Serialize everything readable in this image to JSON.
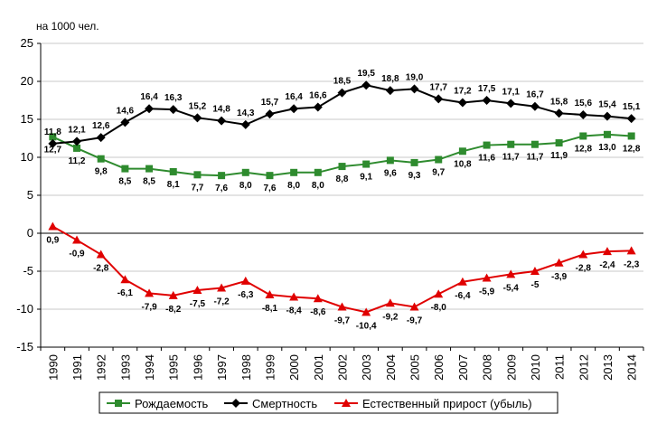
{
  "chart_data": {
    "type": "line",
    "unit_label": "на 1000 чел.",
    "categories": [
      "1990",
      "1991",
      "1992",
      "1993",
      "1994",
      "1995",
      "1996",
      "1997",
      "1998",
      "1999",
      "2000",
      "2001",
      "2002",
      "2003",
      "2004",
      "2005",
      "2006",
      "2007",
      "2008",
      "2009",
      "2010",
      "2011",
      "2012",
      "2013",
      "2014"
    ],
    "ylim": [
      -15,
      25
    ],
    "yticks": [
      -15,
      -10,
      -5,
      0,
      5,
      10,
      15,
      20,
      25
    ],
    "grid": "horizontal",
    "legend_position": "bottom",
    "series": [
      {
        "name": "Рождаемость",
        "color": "#2e8b2e",
        "marker": "square",
        "values": [
          12.7,
          11.2,
          9.8,
          8.5,
          8.5,
          8.1,
          7.7,
          7.6,
          8.0,
          7.6,
          8.0,
          8.0,
          8.8,
          9.1,
          9.6,
          9.3,
          9.7,
          10.8,
          11.6,
          11.7,
          11.7,
          11.9,
          12.8,
          13.0,
          12.8
        ],
        "labels": [
          "12,7",
          "11,2",
          "9,8",
          "8,5",
          "8,5",
          "8,1",
          "7,7",
          "7,6",
          "8,0",
          "7,6",
          "8,0",
          "8,0",
          "8,8",
          "9,1",
          "9,6",
          "9,3",
          "9,7",
          "10,8",
          "11,6",
          "11,7",
          "11,7",
          "11,9",
          "12,8",
          "13,0",
          "12,8"
        ]
      },
      {
        "name": "Смертность",
        "color": "#000000",
        "marker": "diamond",
        "values": [
          11.8,
          12.1,
          12.6,
          14.6,
          16.4,
          16.3,
          15.2,
          14.8,
          14.3,
          15.7,
          16.4,
          16.6,
          18.5,
          19.5,
          18.8,
          19.0,
          17.7,
          17.2,
          17.5,
          17.1,
          16.7,
          15.8,
          15.6,
          15.4,
          15.1
        ],
        "labels": [
          "11,8",
          "12,1",
          "12,6",
          "14,6",
          "16,4",
          "16,3",
          "15,2",
          "14,8",
          "14,3",
          "15,7",
          "16,4",
          "16,6",
          "18,5",
          "19,5",
          "18,8",
          "19,0",
          "17,7",
          "17,2",
          "17,5",
          "17,1",
          "16,7",
          "15,8",
          "15,6",
          "15,4",
          "15,1"
        ]
      },
      {
        "name": "Естественный прирост (убыль)",
        "color": "#e00000",
        "marker": "triangle",
        "values": [
          0.9,
          -0.9,
          -2.8,
          -6.1,
          -7.9,
          -8.2,
          -7.5,
          -7.2,
          -6.3,
          -8.1,
          -8.4,
          -8.6,
          -9.7,
          -10.4,
          -9.2,
          -9.7,
          -8.0,
          -6.4,
          -5.9,
          -5.4,
          -5.0,
          -3.9,
          -2.8,
          -2.4,
          -2.3
        ],
        "labels": [
          "0,9",
          "-0,9",
          "-2,8",
          "-6,1",
          "-7,9",
          "-8,2",
          "-7,5",
          "-7,2",
          "-6,3",
          "-8,1",
          "-8,4",
          "-8,6",
          "-9,7",
          "-10,4",
          "-9,2",
          "-9,7",
          "-8,0",
          "-6,4",
          "-5,9",
          "-5,4",
          "-5",
          "-3,9",
          "-2,8",
          "-2,4",
          "-2,3"
        ]
      }
    ]
  }
}
